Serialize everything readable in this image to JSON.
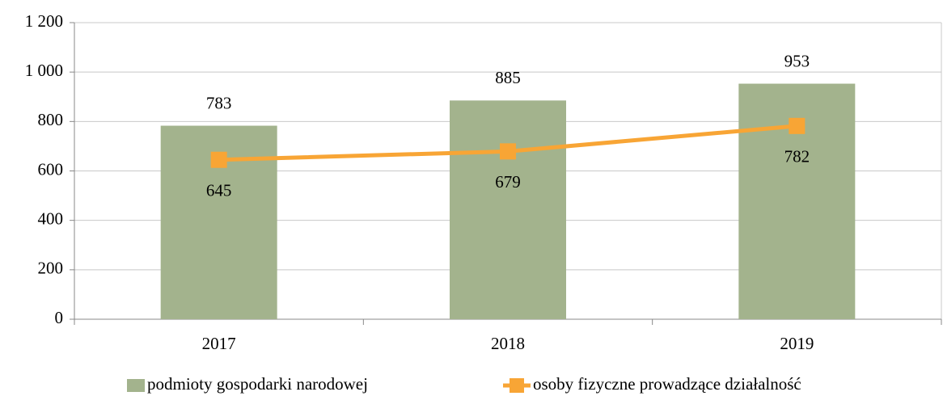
{
  "chart_data": {
    "type": "bar",
    "categories": [
      "2017",
      "2018",
      "2019"
    ],
    "series": [
      {
        "name": "podmioty gospodarki narodowej",
        "type": "bar",
        "color": "#a3b38d",
        "values": [
          783,
          885,
          953
        ]
      },
      {
        "name": "osoby fizyczne prowadzące działalność",
        "type": "line",
        "color": "#f8a535",
        "values": [
          645,
          679,
          782
        ]
      }
    ],
    "ylim": [
      0,
      1200
    ],
    "yticks": [
      0,
      200,
      400,
      600,
      800,
      {
        "value": 1000,
        "label": "1 000"
      },
      {
        "value": 1200,
        "label": "1 200"
      }
    ],
    "grid": true,
    "legend": "bottom"
  }
}
